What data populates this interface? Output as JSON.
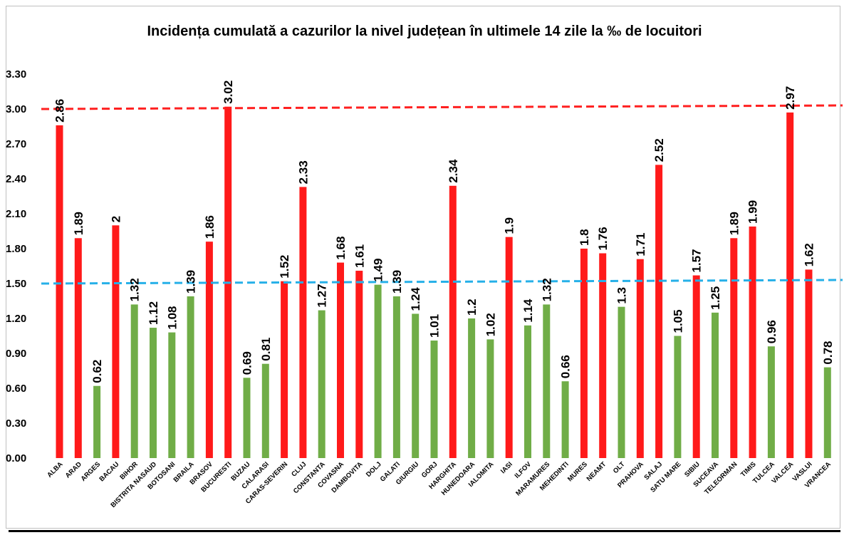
{
  "chart_data": {
    "type": "bar",
    "title": "Incidența cumulată a cazurilor la nivel județean în ultimele 14 zile la ‰ de locuitori",
    "xlabel": "",
    "ylabel": "",
    "ylim": [
      0,
      3.3
    ],
    "yticks": [
      "0.00",
      "0.30",
      "0.60",
      "0.90",
      "1.20",
      "1.50",
      "1.80",
      "2.10",
      "2.40",
      "2.70",
      "3.00",
      "3.30"
    ],
    "grid": false,
    "categories": [
      "ALBA",
      "ARAD",
      "ARGES",
      "BACAU",
      "BIHOR",
      "BISTRITA NASAUD",
      "BOTOSANI",
      "BRAILA",
      "BRASOV",
      "BUCURESTI",
      "BUZAU",
      "CALARASI",
      "CARAS-SEVERIN",
      "CLUJ",
      "CONSTANTA",
      "COVASNA",
      "DAMBOVITA",
      "DOLJ",
      "GALATI",
      "GIURGIU",
      "GORJ",
      "HARGHITA",
      "HUNEDOARA",
      "IALOMITA",
      "IASI",
      "ILFOV",
      "MARAMURES",
      "MEHEDINTI",
      "MURES",
      "NEAMT",
      "OLT",
      "PRAHOVA",
      "SALAJ",
      "SATU MARE",
      "SIBIU",
      "SUCEAVA",
      "TELEORMAN",
      "TIMIS",
      "TULCEA",
      "VALCEA",
      "VASLUI",
      "VRANCEA"
    ],
    "values": [
      2.86,
      1.89,
      0.62,
      2,
      1.32,
      1.12,
      1.08,
      1.39,
      1.86,
      3.02,
      0.69,
      0.81,
      1.52,
      2.33,
      1.27,
      1.68,
      1.61,
      1.49,
      1.39,
      1.24,
      1.01,
      2.34,
      1.2,
      1.02,
      1.9,
      1.14,
      1.32,
      0.66,
      1.8,
      1.76,
      1.3,
      1.71,
      2.52,
      1.05,
      1.57,
      1.25,
      1.89,
      1.99,
      0.96,
      2.97,
      1.62,
      0.78
    ],
    "data_labels": [
      "2.86",
      "1.89",
      "0.62",
      "2",
      "1.32",
      "1.12",
      "1.08",
      "1.39",
      "1.86",
      "3.02",
      "0.69",
      "0.81",
      "1.52",
      "2.33",
      "1.27",
      "1.68",
      "1.61",
      "1.49",
      "1.39",
      "1.24",
      "1.01",
      "2.34",
      "1.2",
      "1.02",
      "1.9",
      "1.14",
      "1.32",
      "0.66",
      "1.8",
      "1.76",
      "1.3",
      "1.71",
      "2.52",
      "1.05",
      "1.57",
      "1.25",
      "1.89",
      "1.99",
      "0.96",
      "2.97",
      "1.62",
      "0.78"
    ],
    "thresholds": [
      {
        "value": 3.0,
        "color": "#ff2020",
        "style": "dashed"
      },
      {
        "value": 1.5,
        "color": "#26b0e8",
        "style": "dashed"
      }
    ],
    "colors": {
      "high": "#ff1a1a",
      "low": "#70ad47"
    },
    "color_rule": "value > 1.5 shown red, otherwise green"
  }
}
